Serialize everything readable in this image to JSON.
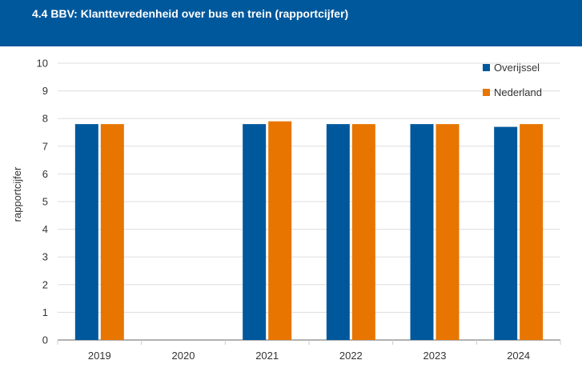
{
  "header": {
    "title": "4.4 BBV: Klanttevredenheid over bus en trein (rapportcijfer)"
  },
  "chart_data": {
    "type": "bar",
    "categories": [
      "2019",
      "2020",
      "2021",
      "2022",
      "2023",
      "2024"
    ],
    "series": [
      {
        "name": "Overijssel",
        "color": "#00589c",
        "values": [
          7.8,
          null,
          7.8,
          7.8,
          7.8,
          7.7
        ]
      },
      {
        "name": "Nederland",
        "color": "#e87500",
        "values": [
          7.8,
          null,
          7.9,
          7.8,
          7.8,
          7.8
        ]
      }
    ],
    "ylabel": "rapportcijfer",
    "xlabel": "",
    "ylim": [
      0,
      10
    ],
    "yticks": [
      0,
      1,
      2,
      3,
      4,
      5,
      6,
      7,
      8,
      9,
      10
    ],
    "grid": true,
    "legend": "top-right"
  }
}
